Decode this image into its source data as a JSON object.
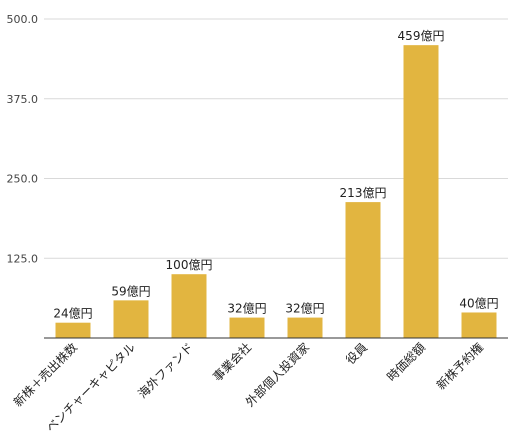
{
  "chart_data": {
    "type": "bar",
    "title": "",
    "xlabel": "",
    "ylabel": "",
    "categories": [
      "新株＋売出株数",
      "ベンチャーキャピタル",
      "海外ファンド",
      "事業会社",
      "外部個人投資家",
      "役員",
      "時価総額",
      "新株予約権"
    ],
    "values": [
      24,
      59,
      100,
      32,
      32,
      213,
      459,
      40
    ],
    "data_labels": [
      "24億円",
      "59億円",
      "100億円",
      "32億円",
      "32億円",
      "213億円",
      "459億円",
      "40億円"
    ],
    "ylim": [
      0,
      500
    ],
    "yticks": [
      0,
      125,
      250,
      375,
      500
    ],
    "ytick_labels": [
      "125.0",
      "250.0",
      "375.0",
      "500.0"
    ],
    "grid": true,
    "legend": "none",
    "bar_color": "#E2B540"
  }
}
